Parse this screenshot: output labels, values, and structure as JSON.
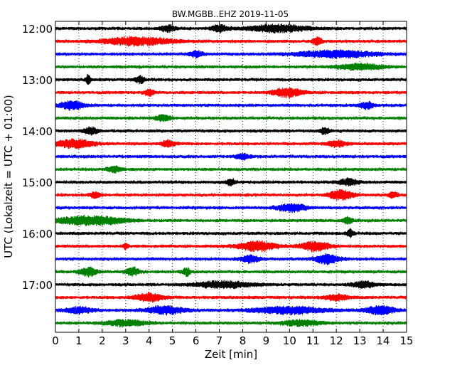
{
  "chart_data": {
    "type": "line",
    "title": "BW.MGBB..EHZ 2019-11-05",
    "xlabel": "Zeit  [min]",
    "ylabel": "UTC (Lokalzeit = UTC + 01:00)",
    "xlim": [
      0,
      15
    ],
    "x_ticks": [
      "0",
      "1",
      "2",
      "3",
      "4",
      "5",
      "6",
      "7",
      "8",
      "9",
      "10",
      "11",
      "12",
      "13",
      "14",
      "15"
    ],
    "y_ticks": [
      "12:00",
      "13:00",
      "14:00",
      "15:00",
      "16:00",
      "17:00"
    ],
    "grid": "vertical dotted",
    "trace_colors": [
      "#000000",
      "#ff0000",
      "#0000ff",
      "#008000"
    ],
    "series": [
      {
        "start": "12:00",
        "color": "#000000",
        "bursts": [
          [
            7.0,
            0.35,
            1.5
          ],
          [
            9.5,
            1.2,
            1.6
          ],
          [
            4.8,
            0.3,
            1.3
          ]
        ]
      },
      {
        "start": "12:15",
        "color": "#ff0000",
        "bursts": [
          [
            3.5,
            1.4,
            1.7
          ],
          [
            11.2,
            0.2,
            1.6
          ]
        ]
      },
      {
        "start": "12:30",
        "color": "#0000ff",
        "bursts": [
          [
            12.0,
            1.6,
            1.5
          ],
          [
            6.0,
            0.3,
            1.3
          ]
        ]
      },
      {
        "start": "12:45",
        "color": "#008000",
        "bursts": [
          [
            13.0,
            1.0,
            1.2
          ]
        ]
      },
      {
        "start": "13:00",
        "color": "#000000",
        "bursts": [
          [
            1.4,
            0.1,
            2.2
          ],
          [
            3.6,
            0.2,
            1.4
          ]
        ]
      },
      {
        "start": "13:15",
        "color": "#ff0000",
        "bursts": [
          [
            9.9,
            0.6,
            1.9
          ],
          [
            4.0,
            0.2,
            1.3
          ]
        ]
      },
      {
        "start": "13:30",
        "color": "#0000ff",
        "bursts": [
          [
            0.7,
            0.5,
            1.8
          ],
          [
            13.3,
            0.3,
            1.4
          ]
        ]
      },
      {
        "start": "13:45",
        "color": "#008000",
        "bursts": [
          [
            4.6,
            0.3,
            1.4
          ]
        ]
      },
      {
        "start": "14:00",
        "color": "#000000",
        "bursts": [
          [
            1.5,
            0.3,
            1.5
          ],
          [
            11.5,
            0.2,
            1.4
          ]
        ]
      },
      {
        "start": "14:15",
        "color": "#ff0000",
        "bursts": [
          [
            0.8,
            0.8,
            1.8
          ],
          [
            4.8,
            0.3,
            1.3
          ],
          [
            12.0,
            0.4,
            1.3
          ]
        ]
      },
      {
        "start": "14:30",
        "color": "#0000ff",
        "bursts": [
          [
            8.0,
            0.3,
            1.2
          ]
        ]
      },
      {
        "start": "14:45",
        "color": "#008000",
        "bursts": [
          [
            2.5,
            0.3,
            1.2
          ]
        ]
      },
      {
        "start": "15:00",
        "color": "#000000",
        "bursts": [
          [
            7.5,
            0.2,
            1.3
          ],
          [
            12.5,
            0.4,
            1.4
          ]
        ]
      },
      {
        "start": "15:15",
        "color": "#ff0000",
        "bursts": [
          [
            12.2,
            0.5,
            2.0
          ],
          [
            1.7,
            0.2,
            1.4
          ],
          [
            14.4,
            0.2,
            1.3
          ]
        ]
      },
      {
        "start": "15:30",
        "color": "#0000ff",
        "bursts": [
          [
            10.1,
            0.6,
            1.7
          ]
        ]
      },
      {
        "start": "15:45",
        "color": "#008000",
        "bursts": [
          [
            1.5,
            1.4,
            1.9
          ],
          [
            12.5,
            0.2,
            1.3
          ]
        ]
      },
      {
        "start": "16:00",
        "color": "#000000",
        "bursts": [
          [
            12.6,
            0.15,
            1.6
          ]
        ]
      },
      {
        "start": "16:15",
        "color": "#ff0000",
        "bursts": [
          [
            8.6,
            0.8,
            2.0
          ],
          [
            11.1,
            0.6,
            2.0
          ],
          [
            3.0,
            0.1,
            1.5
          ]
        ]
      },
      {
        "start": "16:30",
        "color": "#0000ff",
        "bursts": [
          [
            11.6,
            0.5,
            2.0
          ],
          [
            8.3,
            0.4,
            1.4
          ]
        ]
      },
      {
        "start": "16:45",
        "color": "#008000",
        "bursts": [
          [
            1.4,
            0.35,
            1.8
          ],
          [
            3.3,
            0.3,
            1.6
          ],
          [
            5.6,
            0.15,
            1.6
          ]
        ]
      },
      {
        "start": "17:00",
        "color": "#000000",
        "bursts": [
          [
            7.2,
            1.2,
            1.4
          ],
          [
            13.2,
            0.5,
            1.3
          ]
        ]
      },
      {
        "start": "17:15",
        "color": "#ff0000",
        "bursts": [
          [
            4.0,
            0.6,
            1.7
          ],
          [
            12.0,
            0.5,
            1.2
          ]
        ]
      },
      {
        "start": "17:30",
        "color": "#0000ff",
        "bursts": [
          [
            4.7,
            0.8,
            1.6
          ],
          [
            10.0,
            1.5,
            1.5
          ],
          [
            13.9,
            0.6,
            1.9
          ],
          [
            1.0,
            0.6,
            1.3
          ]
        ]
      },
      {
        "start": "17:45",
        "color": "#008000",
        "bursts": [
          [
            3.0,
            0.8,
            1.3
          ],
          [
            10.5,
            0.8,
            1.2
          ]
        ]
      }
    ]
  }
}
